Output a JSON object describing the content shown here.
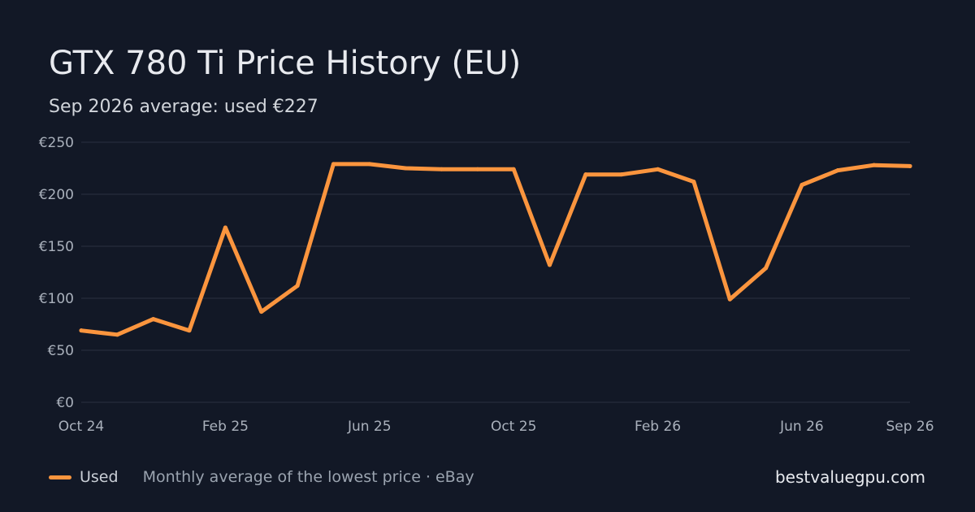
{
  "header": {
    "title": "GTX 780 Ti Price History (EU)",
    "subtitle": "Sep 2026 average: used €227"
  },
  "footer": {
    "legend_label": "Used",
    "source_note": "Monthly average of the lowest price · eBay",
    "brand": "bestvaluegpu.com"
  },
  "colors": {
    "background": "#121826",
    "line": "#fb953e",
    "grid": "#2a3140",
    "tick_text": "#aab1bc"
  },
  "chart_data": {
    "type": "line",
    "title": "GTX 780 Ti Price History (EU)",
    "subtitle": "Sep 2026 average: used €227",
    "x": [
      "Oct 2024",
      "Nov 2024",
      "Dec 2024",
      "Jan 2025",
      "Feb 2025",
      "Mar 2025",
      "Apr 2025",
      "May 2025",
      "Jun 2025",
      "Jul 2025",
      "Aug 2025",
      "Sep 2025",
      "Oct 2025",
      "Nov 2025",
      "Dec 2025",
      "Jan 2026",
      "Feb 2026",
      "Mar 2026",
      "Apr 2026",
      "May 2026",
      "Jun 2026",
      "Jul 2026",
      "Aug 2026",
      "Sep 2026"
    ],
    "series": [
      {
        "name": "Used",
        "values": [
          69,
          65,
          80,
          69,
          168,
          87,
          112,
          229,
          229,
          225,
          224,
          224,
          224,
          132,
          219,
          219,
          224,
          212,
          99,
          129,
          209,
          223,
          228,
          227
        ]
      }
    ],
    "x_ticks": [
      "Oct 24",
      "Feb 25",
      "Jun 25",
      "Oct 25",
      "Feb 26",
      "Jun 26",
      "Sep 26"
    ],
    "x_tick_indices": [
      0,
      4,
      8,
      12,
      16,
      20,
      23
    ],
    "y_ticks": [
      "€0",
      "€50",
      "€100",
      "€150",
      "€200",
      "€250"
    ],
    "y_tick_values": [
      0,
      50,
      100,
      150,
      200,
      250
    ],
    "ylim": [
      0,
      250
    ],
    "grid": true,
    "legend": "bottom-left"
  }
}
